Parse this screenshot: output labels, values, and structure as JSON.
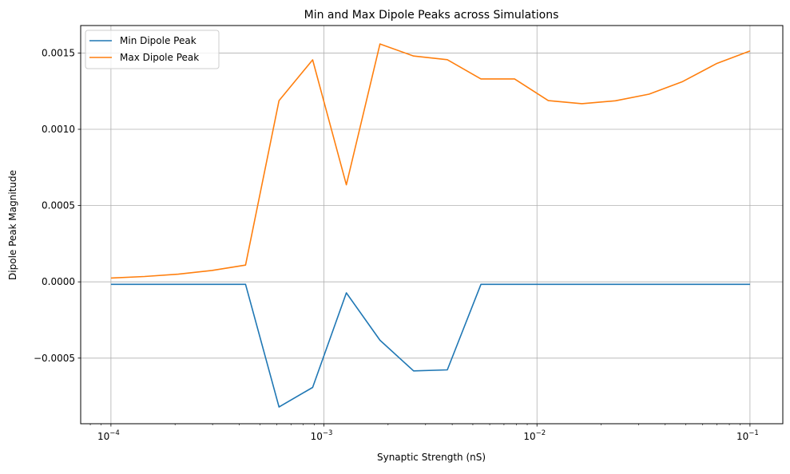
{
  "chart_data": {
    "type": "line",
    "title": "Min and Max Dipole Peaks across Simulations",
    "xlabel": "Synaptic Strength (nS)",
    "ylabel": "Dipole Peak Magnitude",
    "xscale": "log",
    "xlim": [
      7.21e-05,
      0.1426
    ],
    "ylim": [
      -0.00093,
      0.00168
    ],
    "grid": true,
    "legend_position": "top-left",
    "x_ticks": [
      {
        "value": 0.0001,
        "base": "10",
        "exp": "−4"
      },
      {
        "value": 0.001,
        "base": "10",
        "exp": "−3"
      },
      {
        "value": 0.01,
        "base": "10",
        "exp": "−2"
      },
      {
        "value": 0.1,
        "base": "10",
        "exp": "−1"
      }
    ],
    "y_ticks": [
      {
        "value": -0.0005,
        "label": "−0.0005"
      },
      {
        "value": 0.0,
        "label": "0.0000"
      },
      {
        "value": 0.0005,
        "label": "0.0005"
      },
      {
        "value": 0.001,
        "label": "0.0010"
      },
      {
        "value": 0.0015,
        "label": "0.0015"
      }
    ],
    "x_log10": [
      -4,
      -3.842,
      -3.684,
      -3.526,
      -3.368,
      -3.211,
      -3.053,
      -2.895,
      -2.737,
      -2.579,
      -2.421,
      -2.263,
      -2.105,
      -1.947,
      -1.789,
      -1.632,
      -1.474,
      -1.316,
      -1.158,
      -1
    ],
    "series": [
      {
        "name": "Min Dipole Peak",
        "color": "#1f77b4",
        "values": [
          -1.6e-05,
          -1.6e-05,
          -1.6e-05,
          -1.6e-05,
          -1.6e-05,
          -0.00082,
          -0.000692,
          -7.2e-05,
          -0.000383,
          -0.000584,
          -0.000577,
          -1.6e-05,
          -1.6e-05,
          -1.6e-05,
          -1.6e-05,
          -1.6e-05,
          -1.6e-05,
          -1.6e-05,
          -1.6e-05,
          -1.6e-05
        ]
      },
      {
        "name": "Max Dipole Peak",
        "color": "#ff7f0e",
        "values": [
          2.5e-05,
          3.5e-05,
          5e-05,
          7.5e-05,
          0.00011,
          0.001188,
          0.001455,
          0.000636,
          0.001559,
          0.00148,
          0.001456,
          0.00133,
          0.00133,
          0.001188,
          0.001168,
          0.001187,
          0.00123,
          0.001313,
          0.00143,
          0.001513
        ]
      }
    ]
  }
}
